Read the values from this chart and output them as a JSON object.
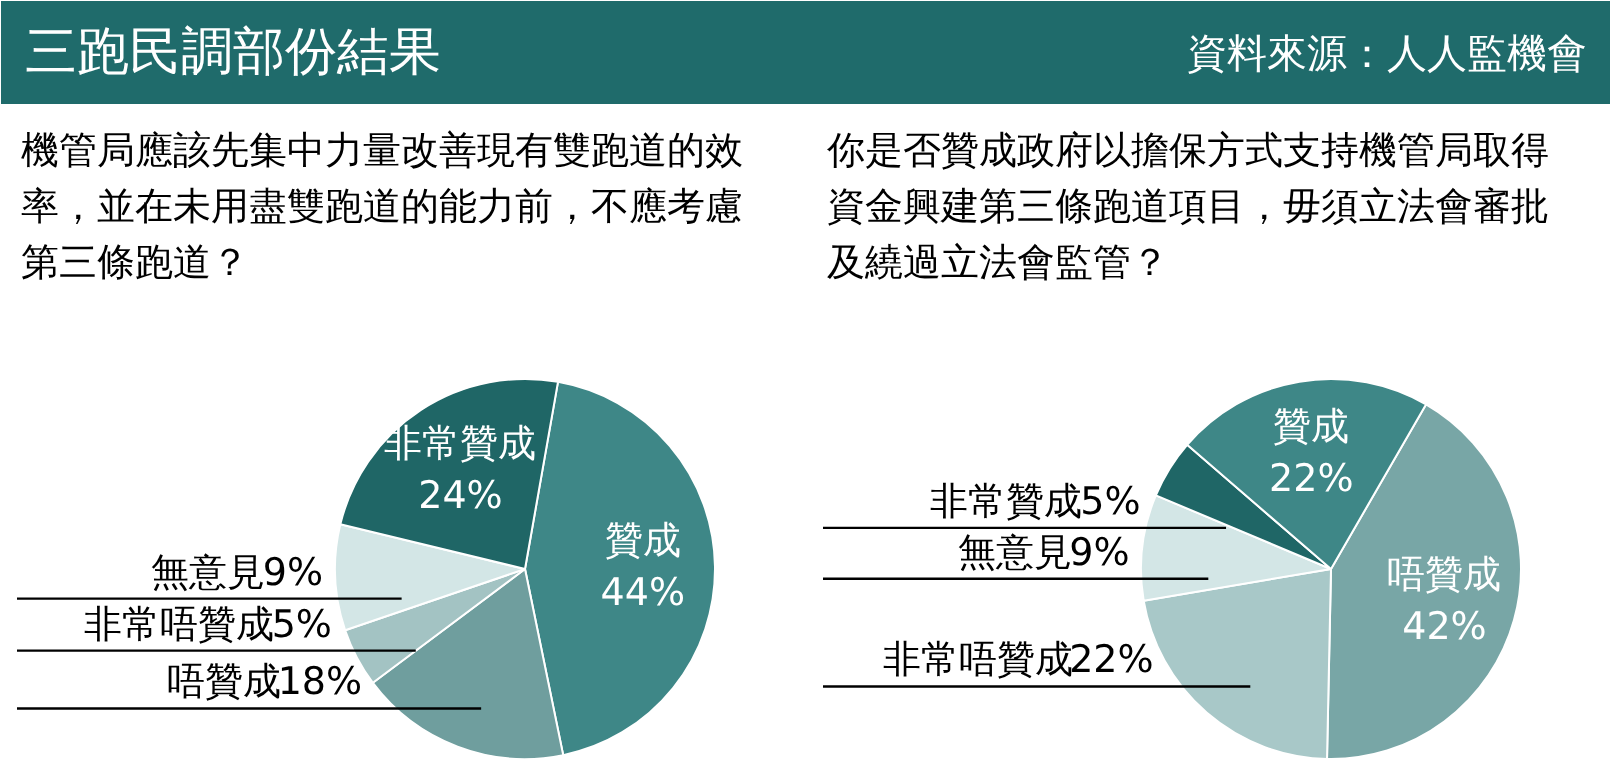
{
  "chart_data": [
    {
      "type": "other",
      "title": "三跑民調部份結果",
      "annotations": [
        "資料來源：人人監機會"
      ]
    },
    {
      "type": "pie",
      "title": "機管局應該先集中力量改善現有雙跑道的效率，並在未用盡雙跑道的能力前，不應考慮第三條跑道？",
      "categories": [
        "贊成",
        "唔贊成",
        "非常唔贊成",
        "無意見",
        "非常贊成"
      ],
      "values": [
        44,
        18,
        5,
        9,
        24
      ],
      "value_labels": [
        "44%",
        "18%",
        "5%",
        "9%",
        "24%"
      ],
      "colors": [
        "#3e8787",
        "#6f9e9e",
        "#a3c3c3",
        "#d3e6e6",
        "#1f6666"
      ]
    },
    {
      "type": "pie",
      "title": "你是否贊成政府以擔保方式支持機管局取得資金興建第三條跑道項目，毋須立法會審批及繞過立法會監管？",
      "categories": [
        "唔贊成",
        "非常唔贊成",
        "無意見",
        "非常贊成",
        "贊成"
      ],
      "values": [
        42,
        22,
        9,
        5,
        22
      ],
      "value_labels": [
        "42%",
        "22%",
        "9%",
        "5%",
        "22%"
      ],
      "colors": [
        "#78a6a6",
        "#a8c8c8",
        "#d3e6e6",
        "#1f6666",
        "#3e8787"
      ]
    }
  ]
}
